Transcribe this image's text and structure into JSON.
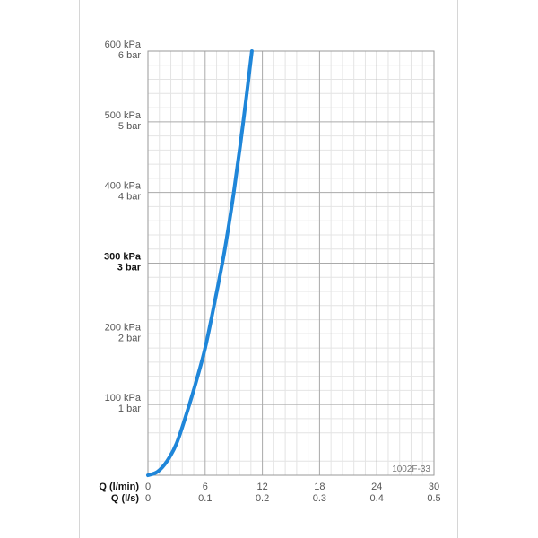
{
  "chart_data": {
    "type": "line",
    "code_label": "1002F-33",
    "x_axes": [
      {
        "title": "Q (l/min)",
        "ticks": [
          "0",
          "6",
          "12",
          "18",
          "24",
          "30"
        ],
        "range": [
          0,
          30
        ]
      },
      {
        "title": "Q (l/s)",
        "ticks": [
          "0",
          "0.1",
          "0.2",
          "0.3",
          "0.4",
          "0.5"
        ],
        "range": [
          0,
          0.5
        ]
      }
    ],
    "y_axis": {
      "range": [
        0,
        600
      ],
      "ticks": [
        {
          "value": 100,
          "kpa": "100 kPa",
          "bar": "1 bar",
          "bold": false
        },
        {
          "value": 200,
          "kpa": "200 kPa",
          "bar": "2 bar",
          "bold": false
        },
        {
          "value": 300,
          "kpa": "300 kPa",
          "bar": "3 bar",
          "bold": true
        },
        {
          "value": 400,
          "kpa": "400 kPa",
          "bar": "4 bar",
          "bold": false
        },
        {
          "value": 500,
          "kpa": "500 kPa",
          "bar": "5 bar",
          "bold": false
        },
        {
          "value": 600,
          "kpa": "600 kPa",
          "bar": "6 bar",
          "bold": false
        }
      ]
    },
    "grid": true,
    "series": [
      {
        "color": "#1f86d9",
        "x": [
          0,
          1,
          2,
          3,
          4,
          5,
          6,
          7,
          8,
          9,
          10,
          10.9
        ],
        "y": [
          0,
          5,
          20,
          45,
          85,
          130,
          180,
          245,
          315,
          400,
          500,
          600
        ]
      }
    ]
  }
}
